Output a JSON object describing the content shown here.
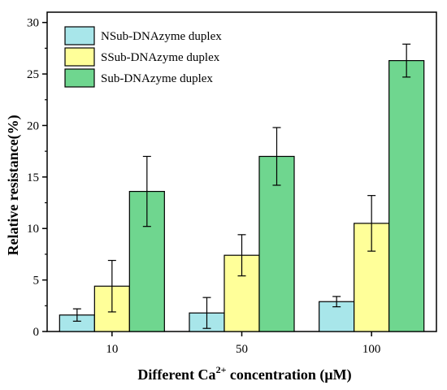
{
  "chart_data": {
    "type": "bar",
    "categories": [
      "10",
      "50",
      "100"
    ],
    "series": [
      {
        "name": "NSub-DNAzyme duplex",
        "color": "#a8e6ea",
        "values": [
          1.6,
          1.8,
          2.9
        ],
        "errors": [
          0.6,
          1.5,
          0.5
        ]
      },
      {
        "name": "SSub-DNAzyme duplex",
        "color": "#ffff99",
        "values": [
          4.4,
          7.4,
          10.5
        ],
        "errors": [
          2.5,
          2.0,
          2.7
        ]
      },
      {
        "name": "Sub-DNAzyme duplex",
        "color": "#6fd68f",
        "values": [
          13.6,
          17.0,
          26.3
        ],
        "errors": [
          3.4,
          2.8,
          1.6
        ]
      }
    ],
    "xlabel_main": "Different Ca",
    "xlabel_sup": "2+",
    "xlabel_end": " concentration (μM)",
    "ylabel": "Relative resistance(%)",
    "ylim": [
      0,
      31
    ],
    "yticks": [
      0,
      5,
      10,
      15,
      20,
      25,
      30
    ],
    "legend_position": "top-left",
    "grid": false
  }
}
